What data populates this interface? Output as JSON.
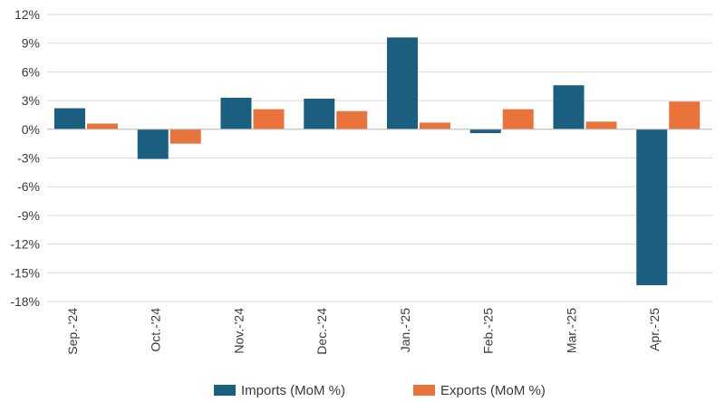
{
  "chart_data": {
    "type": "bar",
    "categories": [
      "Sep.-'24",
      "Oct.-'24",
      "Nov.-'24",
      "Dec.-'24",
      "Jan.-'25",
      "Feb.-'25",
      "Mar.-'25",
      "Apr.-'25"
    ],
    "series": [
      {
        "name": "Imports (MoM %)",
        "color": "#1a5e80",
        "values": [
          2.2,
          -3.1,
          3.3,
          3.2,
          9.6,
          -0.4,
          4.6,
          -16.3
        ]
      },
      {
        "name": "Exports (MoM %)",
        "color": "#e8743b",
        "values": [
          0.6,
          -1.5,
          2.1,
          1.9,
          0.7,
          2.1,
          0.8,
          2.9
        ]
      }
    ],
    "y_ticks": [
      12,
      9,
      6,
      3,
      0,
      -3,
      -6,
      -9,
      -12,
      -15,
      -18
    ],
    "y_tick_labels": [
      "12%",
      "9%",
      "6%",
      "3%",
      "0%",
      "-3%",
      "-6%",
      "-9%",
      "-12%",
      "-15%",
      "-18%"
    ],
    "ylim": [
      -18,
      12
    ],
    "grid": "horizontal",
    "legend_position": "bottom"
  }
}
